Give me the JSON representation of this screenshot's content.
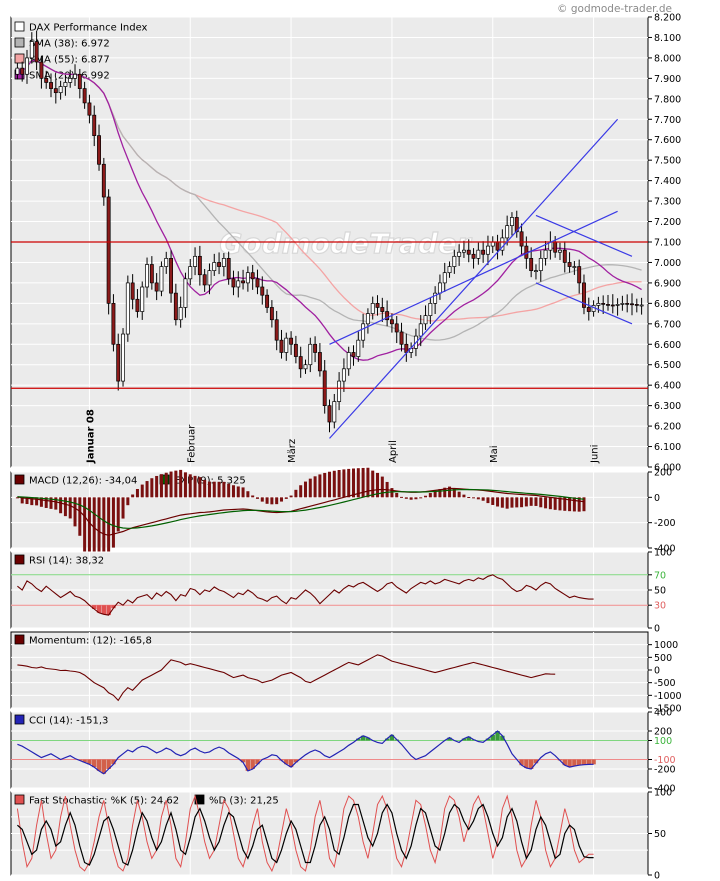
{
  "copyright": "© godmode-trader.de",
  "watermark": "GodmodeTrader",
  "colors": {
    "panel_bg": "#ebebeb",
    "grid": "#ffffff",
    "candle_up": "#ffffff",
    "candle_down": "#8b1a1a",
    "sma38": "#b4b4b4",
    "sma55": "#f4a4a4",
    "sma20": "#a020a0",
    "channel": "#3a3ae6",
    "hline": "#cc0000",
    "macd": "#6b0000",
    "signal": "#006000",
    "rsi": "#6b0000",
    "cci": "#2323b4",
    "stoch_k": "#e05050",
    "stoch_d": "#000000"
  },
  "chart_data": [
    {
      "type": "candlestick",
      "title": "DAX Performance Index",
      "legend": [
        {
          "label": "DAX Performance Index",
          "swatch": "#ffffff"
        },
        {
          "label": "SMA (38): 6.972",
          "swatch": "#b4b4b4"
        },
        {
          "label": "SMA (55): 6.877",
          "swatch": "#f4a4a4"
        },
        {
          "label": "SMA (20): 6.992",
          "swatch": "#a020a0"
        }
      ],
      "ylim": [
        6000,
        8200
      ],
      "yticks": [
        "8.200",
        "8.100",
        "8.000",
        "7.900",
        "7.800",
        "7.700",
        "7.600",
        "7.500",
        "7.400",
        "7.300",
        "7.200",
        "7.100",
        "7.000",
        "6.900",
        "6.800",
        "6.700",
        "6.600",
        "6.500",
        "6.400",
        "6.300",
        "6.200",
        "6.100",
        "6.000"
      ],
      "ytick_values": [
        8200,
        8100,
        8000,
        7900,
        7800,
        7700,
        7600,
        7500,
        7400,
        7300,
        7200,
        7100,
        7000,
        6900,
        6800,
        6700,
        6600,
        6500,
        6400,
        6300,
        6200,
        6100,
        6000
      ],
      "months": [
        {
          "label": "Januar 08",
          "day": 15
        },
        {
          "label": "Februar",
          "day": 36
        },
        {
          "label": "März",
          "day": 57
        },
        {
          "label": "April",
          "day": 78
        },
        {
          "label": "Mai",
          "day": 99
        },
        {
          "label": "Juni",
          "day": 120
        }
      ],
      "days": 131,
      "horizontal_lines": [
        7100,
        6385
      ],
      "channel_lines": [
        {
          "from": [
            65,
            6140
          ],
          "to": [
            125,
            7700
          ]
        },
        {
          "from": [
            65,
            6600
          ],
          "to": [
            125,
            7250
          ]
        },
        {
          "from": [
            108,
            7230
          ],
          "to": [
            128,
            7030
          ]
        },
        {
          "from": [
            108,
            6900
          ],
          "to": [
            128,
            6700
          ]
        }
      ],
      "close": [
        7950,
        7920,
        8000,
        8080,
        7980,
        7900,
        7880,
        7850,
        7830,
        7860,
        7880,
        7900,
        7920,
        7850,
        7780,
        7720,
        7620,
        7480,
        7320,
        6800,
        6600,
        6420,
        6650,
        6900,
        6820,
        6760,
        6880,
        6990,
        6900,
        6860,
        6980,
        7020,
        6850,
        6720,
        6780,
        6920,
        6980,
        7030,
        6940,
        6890,
        6960,
        7000,
        6980,
        7020,
        6920,
        6880,
        6910,
        6900,
        6950,
        6920,
        6880,
        6840,
        6780,
        6720,
        6620,
        6560,
        6630,
        6600,
        6540,
        6480,
        6500,
        6600,
        6560,
        6470,
        6300,
        6220,
        6320,
        6420,
        6480,
        6560,
        6540,
        6620,
        6700,
        6750,
        6800,
        6780,
        6760,
        6720,
        6700,
        6660,
        6600,
        6560,
        6580,
        6640,
        6700,
        6740,
        6800,
        6850,
        6900,
        6950,
        6980,
        7030,
        7050,
        7060,
        7040,
        7020,
        7060,
        7040,
        7080,
        7100,
        7060,
        7120,
        7180,
        7220,
        7150,
        7080,
        7020,
        6960,
        6960,
        7020,
        7060,
        7100,
        7050,
        7060,
        7000,
        6980,
        6980,
        6900,
        6780,
        6760,
        6790,
        6800,
        6795,
        6792,
        6790,
        6795,
        6800,
        6798,
        6795,
        6790,
        6792
      ]
    },
    {
      "type": "line",
      "title": "MACD (12,26): -34,04",
      "legend": [
        {
          "label": "MACD (12,26): -34,04",
          "swatch": "#6b0000"
        },
        {
          "label": "EXP (9): 5,325",
          "swatch": "#006000"
        }
      ],
      "ylim": [
        -400,
        200
      ],
      "yticks": [
        "200",
        "0",
        "-200",
        "-400"
      ],
      "ytick_values": [
        200,
        0,
        -200,
        -400
      ],
      "macd": [
        5,
        -5,
        -8,
        -12,
        -15,
        -20,
        -25,
        -30,
        -35,
        -45,
        -55,
        -65,
        -85,
        -110,
        -150,
        -200,
        -240,
        -270,
        -290,
        -300,
        -290,
        -280,
        -270,
        -255,
        -240,
        -230,
        -220,
        -210,
        -200,
        -190,
        -180,
        -170,
        -160,
        -150,
        -140,
        -135,
        -130,
        -125,
        -120,
        -118,
        -115,
        -110,
        -105,
        -100,
        -98,
        -96,
        -94,
        -92,
        -95,
        -100,
        -105,
        -110,
        -115,
        -118,
        -120,
        -118,
        -115,
        -110,
        -100,
        -90,
        -80,
        -70,
        -60,
        -50,
        -40,
        -30,
        -20,
        -10,
        0,
        10,
        20,
        30,
        40,
        50,
        55,
        60,
        62,
        60,
        55,
        50,
        45,
        42,
        40,
        40,
        42,
        45,
        50,
        55,
        60,
        65,
        70,
        70,
        68,
        65,
        62,
        60,
        58,
        55,
        50,
        45,
        40,
        35,
        30,
        28,
        25,
        22,
        20,
        18,
        15,
        10,
        5,
        0,
        -5,
        -10,
        -15,
        -20,
        -25,
        -30,
        -34
      ]
    },
    {
      "type": "line",
      "title": "RSI (14): 38,32",
      "legend": [
        {
          "label": "RSI (14): 38,32",
          "swatch": "#6b0000"
        }
      ],
      "ylim": [
        0,
        100
      ],
      "yticks": [
        "100",
        "70",
        "50",
        "30",
        "0"
      ],
      "ytick_values": [
        100,
        70,
        50,
        30,
        0
      ],
      "level_lines": [
        70,
        30
      ],
      "values": [
        55,
        50,
        62,
        58,
        52,
        48,
        55,
        50,
        45,
        40,
        44,
        48,
        42,
        40,
        36,
        30,
        25,
        20,
        18,
        17,
        26,
        34,
        30,
        37,
        33,
        40,
        42,
        44,
        38,
        46,
        42,
        48,
        44,
        36,
        44,
        42,
        52,
        50,
        44,
        50,
        48,
        54,
        50,
        48,
        44,
        40,
        46,
        44,
        50,
        46,
        40,
        38,
        35,
        40,
        42,
        36,
        32,
        40,
        38,
        44,
        50,
        46,
        40,
        32,
        38,
        44,
        50,
        46,
        52,
        56,
        54,
        58,
        60,
        56,
        52,
        48,
        52,
        58,
        60,
        54,
        50,
        46,
        52,
        56,
        60,
        58,
        62,
        58,
        60,
        64,
        62,
        60,
        58,
        62,
        64,
        62,
        66,
        64,
        68,
        70,
        66,
        64,
        58,
        52,
        48,
        50,
        56,
        54,
        50,
        56,
        60,
        58,
        52,
        48,
        44,
        40,
        42,
        40,
        39,
        38,
        38
      ]
    },
    {
      "type": "line",
      "title": "Momentum: (12): -165,8",
      "legend": [
        {
          "label": "Momentum: (12): -165,8",
          "swatch": "#6b0000"
        }
      ],
      "ylim": [
        -1500,
        1500
      ],
      "yticks": [
        "1000",
        "500",
        "0",
        "-500",
        "-1000",
        "-1500"
      ],
      "ytick_values": [
        1000,
        500,
        0,
        -500,
        -1000,
        -1500
      ],
      "values": [
        200,
        180,
        150,
        100,
        80,
        120,
        60,
        40,
        20,
        -20,
        -10,
        -40,
        -60,
        -100,
        -200,
        -350,
        -500,
        -600,
        -700,
        -900,
        -1000,
        -1200,
        -900,
        -700,
        -800,
        -600,
        -400,
        -300,
        -200,
        -100,
        0,
        200,
        400,
        350,
        300,
        200,
        250,
        200,
        150,
        100,
        50,
        0,
        -50,
        -100,
        -200,
        -300,
        -250,
        -200,
        -300,
        -350,
        -400,
        -500,
        -450,
        -400,
        -300,
        -200,
        -150,
        -100,
        -200,
        -300,
        -450,
        -500,
        -400,
        -300,
        -200,
        -100,
        0,
        100,
        200,
        300,
        250,
        200,
        300,
        400,
        500,
        600,
        550,
        450,
        350,
        300,
        250,
        200,
        150,
        100,
        50,
        0,
        -50,
        -100,
        -50,
        0,
        50,
        100,
        150,
        200,
        250,
        300,
        250,
        200,
        150,
        100,
        50,
        0,
        -50,
        -100,
        -150,
        -200,
        -250,
        -300,
        -250,
        -200,
        -150,
        -160,
        -165
      ]
    },
    {
      "type": "area",
      "title": "CCI (14): -151,3",
      "legend": [
        {
          "label": "CCI (14): -151,3",
          "swatch": "#2323b4"
        }
      ],
      "ylim": [
        -400,
        400
      ],
      "yticks": [
        "400",
        "200",
        "100",
        "-100",
        "-200",
        "-400"
      ],
      "ytick_values": [
        400,
        200,
        100,
        -100,
        -200,
        -400
      ],
      "level_lines": [
        100,
        -100
      ],
      "values": [
        60,
        40,
        10,
        -20,
        -50,
        -80,
        -60,
        -40,
        -70,
        -100,
        -80,
        -60,
        -90,
        -110,
        -130,
        -150,
        -180,
        -220,
        -250,
        -200,
        -150,
        -80,
        -40,
        0,
        -20,
        20,
        40,
        30,
        0,
        -30,
        -10,
        20,
        0,
        -40,
        -60,
        -40,
        0,
        20,
        -10,
        -30,
        -20,
        10,
        30,
        10,
        -30,
        -60,
        -90,
        -130,
        -220,
        -200,
        -150,
        -100,
        -80,
        -50,
        -60,
        -110,
        -150,
        -180,
        -130,
        -90,
        -50,
        -20,
        0,
        -20,
        -60,
        -80,
        -50,
        -20,
        10,
        50,
        80,
        120,
        150,
        130,
        100,
        80,
        70,
        120,
        160,
        110,
        60,
        0,
        -60,
        -100,
        -80,
        -60,
        -20,
        20,
        60,
        100,
        130,
        100,
        80,
        120,
        140,
        110,
        90,
        80,
        120,
        160,
        200,
        150,
        60,
        -40,
        -100,
        -160,
        -190,
        -200,
        -140,
        -80,
        -40,
        -20,
        -60,
        -110,
        -160,
        -180,
        -170,
        -160,
        -155,
        -152,
        -151
      ]
    },
    {
      "type": "line",
      "title": "Fast Stochastic: %K (5): 24,62",
      "legend": [
        {
          "label": "Fast Stochastic: %K (5): 24,62",
          "swatch": "#e05050"
        },
        {
          "label": "%D (3): 21,25",
          "swatch": "#000000"
        }
      ],
      "ylim": [
        0,
        100
      ],
      "yticks": [
        "100",
        "50",
        "0"
      ],
      "ytick_values": [
        100,
        50,
        0
      ],
      "level_lines": [
        70,
        30
      ],
      "k": [
        80,
        40,
        10,
        20,
        60,
        90,
        50,
        20,
        30,
        70,
        95,
        60,
        30,
        10,
        5,
        15,
        40,
        70,
        90,
        60,
        30,
        10,
        5,
        20,
        60,
        90,
        70,
        40,
        20,
        30,
        70,
        90,
        60,
        20,
        10,
        40,
        80,
        95,
        70,
        40,
        20,
        30,
        60,
        90,
        80,
        50,
        20,
        10,
        30,
        60,
        80,
        40,
        15,
        5,
        20,
        50,
        80,
        60,
        30,
        10,
        5,
        30,
        70,
        90,
        60,
        20,
        10,
        40,
        80,
        95,
        90,
        70,
        40,
        20,
        50,
        85,
        95,
        80,
        50,
        20,
        10,
        30,
        60,
        90,
        85,
        60,
        30,
        15,
        40,
        80,
        95,
        90,
        70,
        40,
        60,
        85,
        95,
        80,
        50,
        20,
        40,
        80,
        95,
        70,
        30,
        10,
        20,
        60,
        90,
        70,
        30,
        10,
        20,
        50,
        80,
        60,
        30,
        15,
        20,
        25,
        25
      ],
      "d": [
        60,
        55,
        40,
        25,
        30,
        55,
        65,
        55,
        35,
        40,
        60,
        75,
        60,
        35,
        15,
        12,
        25,
        45,
        65,
        70,
        55,
        35,
        15,
        12,
        30,
        55,
        75,
        65,
        45,
        30,
        40,
        60,
        75,
        55,
        30,
        25,
        45,
        70,
        80,
        65,
        45,
        30,
        40,
        60,
        75,
        70,
        50,
        30,
        20,
        35,
        55,
        60,
        40,
        20,
        15,
        30,
        50,
        65,
        55,
        35,
        15,
        15,
        35,
        60,
        70,
        55,
        30,
        25,
        45,
        70,
        85,
        85,
        65,
        45,
        35,
        50,
        75,
        85,
        75,
        50,
        30,
        20,
        35,
        60,
        80,
        75,
        55,
        35,
        30,
        50,
        75,
        85,
        80,
        65,
        55,
        65,
        80,
        85,
        70,
        50,
        35,
        45,
        70,
        80,
        65,
        40,
        20,
        30,
        55,
        70,
        60,
        40,
        20,
        25,
        50,
        60,
        55,
        35,
        22,
        21,
        21
      ]
    }
  ]
}
